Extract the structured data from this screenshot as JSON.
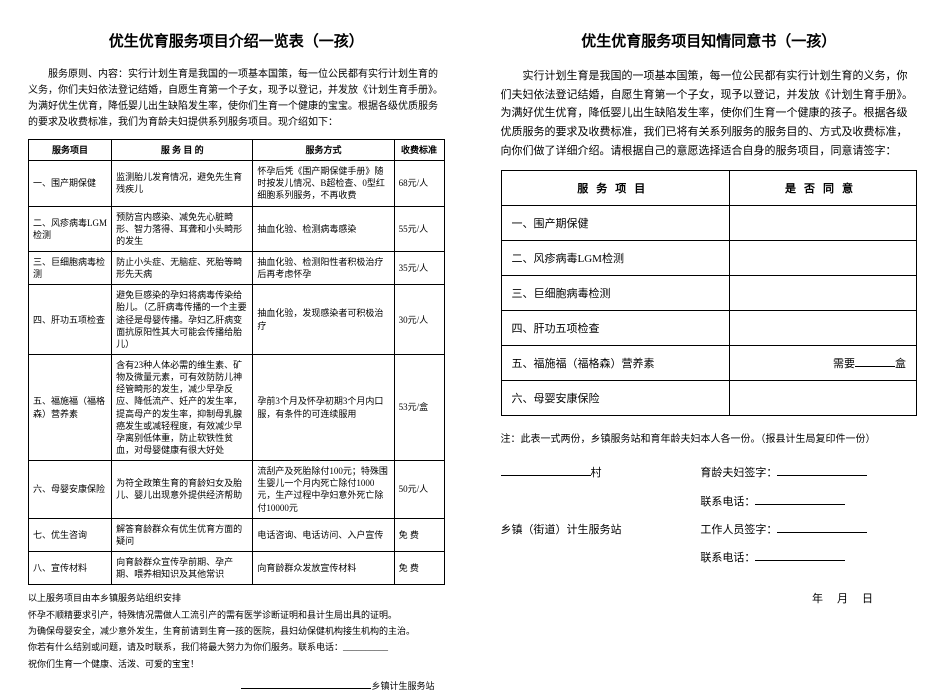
{
  "left": {
    "title": "优生优育服务项目介绍一览表（一孩）",
    "intro": "服务原则、内容：实行计划生育是我国的一项基本国策，每一位公民都有实行计划生育的义务，你们夫妇依法登记结婚，自愿生育第一个子女，现予以登记，并发放《计划生育手册》。为满好优生优育，降低婴儿出生缺陷发生率，使你们生育一个健康的宝宝。根据各级优质服务的要求及收费标准，我们为育龄夫妇提供系列服务项目。现介绍如下：",
    "headers": [
      "服务项目",
      "服 务 目 的",
      "服务方式",
      "收费标准"
    ],
    "rows": [
      {
        "a": "一、围产期保健",
        "b": "监测胎儿发育情况，避免先生育残疾儿",
        "c": "怀孕后凭《围产期保健手册》随时按发儿情况、B超检查、0型红细胞系列服务，不再收费",
        "d": "68元/人"
      },
      {
        "a": "二、风疹病毒LGM检测",
        "b": "预防宫内感染、减免先心脏畸形、智力落得、耳聋和小头畸形的发生",
        "c": "抽血化验、检测病毒感染",
        "d": "55元/人"
      },
      {
        "a": "三、巨细胞病毒检测",
        "b": "防止小头症、无脑症、死胎等畸形先天病",
        "c": "抽血化验、检测阳性者积极治疗后再考虑怀孕",
        "d": "35元/人"
      },
      {
        "a": "四、肝功五项检查",
        "b": "避免巨感染的孕妇将病毒传染给胎儿。（乙肝病毒传播的一个主要途径是母婴传播。孕妇乙肝病变面抗原阳性其大可能会传播给胎儿）",
        "c": "抽血化验，发现感染者可积极治疗",
        "d": "30元/人"
      },
      {
        "a": "五、福施福（福格森）营养素",
        "b": "含有23种人体必需的维生素、矿物及微量元素，可有效防防儿神经管畸形的发生，减少早孕反应、降低流产、妊产的发生率，提高母产的发生率，抑制母乳腺癌发生或减轻程度，有效减少早孕离别低体重，防止软铁性贫血，对母婴健康有很大好处",
        "c": "孕前3个月及怀孕初期3个月内口服，有条件的可连续服用",
        "d": "53元/盒"
      },
      {
        "a": "六、母婴安康保险",
        "b": "为符全政策生育的育龄妇女及胎儿、婴儿出现意外提供经济帮助",
        "c": "流刮产及死胎除付100元；特殊围生婴儿一个月内死亡除付1000元，生产过程中孕妇意外死亡除付10000元",
        "d": "50元/人"
      },
      {
        "a": "七、优生咨询",
        "b": "解答育龄群众有优生优育方面的疑问",
        "c": "电话咨询、电话访问、入户宣传",
        "d": "免 费"
      },
      {
        "a": "八、宣传材料",
        "b": "向育龄群众宣传孕前期、孕产期、喂养相知识及其他常识",
        "c": "向育龄群众发放宣传材料",
        "d": "免 费"
      }
    ],
    "footnotes": [
      "以上服务项目由本乡镇服务站组织安排",
      "怀孕不顺精要求引产，特殊情况需做人工流引产的需有医学诊断证明和县计生局出具的证明。",
      "为确保母婴安全，减少意外发生，生育前请到生育一孩的医院，县妇幼保健机构接生机构的主治。",
      "你若有什么结别或问题，请及时联系，我们将最大努力为你们服务。联系电话：__________",
      "祝你们生育一个健康、活泼、可爱的宝宝！"
    ],
    "sig_suffix": "乡镇计生服务站"
  },
  "right": {
    "title": "优生优育服务项目知情同意书（一孩）",
    "intro": "实行计划生育是我国的一项基本国策，每一位公民都有实行计划生育的义务，你们夫妇依法登记结婚，自愿生育第一个子女，现予以登记，并发放《计划生育手册》。为满好优生优育，降低婴儿出生缺陷发生率，使你们生育一个健康的孩子。根据各级优质服务的要求及收费标准，我们已将有关系列服务的服务目的、方式及收费标准，向你们做了详细介绍。请根据自己的意愿选择适合自身的服务项目，同意请签字：",
    "header1": "服务项目",
    "header2": "是否同意",
    "items": [
      "一、围产期保健",
      "二、风疹病毒LGM检测",
      "三、巨细胞病毒检测",
      "四、肝功五项检查",
      "五、福施福（福格森）营养素",
      "六、母婴安康保险"
    ],
    "item5_label": "需要",
    "item5_unit": "盒",
    "note": "注：此表一式两份，乡镇服务站和育年龄夫妇本人各一份。（报县计生局复印件一份）",
    "sig_village": "村",
    "sig_couple": "育龄夫妇签字：",
    "sig_contact": "联系电话：",
    "sig_station": "乡镇（街道）计生服务站",
    "sig_worker": "工作人员签字：",
    "date": "年月日"
  }
}
